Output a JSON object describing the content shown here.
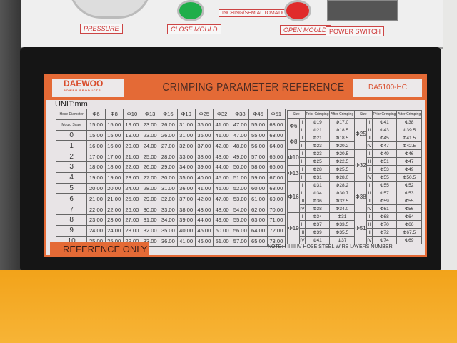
{
  "panel": {
    "labels": [
      "PRESSURE",
      "CLOSE MOULD",
      "INCHING/SEMIAUTOMATIC",
      "OPEN MOULD",
      "POWER SWITCH"
    ]
  },
  "label": {
    "brand": "DAEWOO",
    "brand_sub": "POWER PRODUCTS",
    "title": "CRIMPING PARAMETER REFERENCE",
    "model": "DA5100-HC",
    "unit": "UNIT:mm",
    "reference_only": "REFERENCE ONLY",
    "note": "NOTE:  I  II  III  IV   HOSE STEEL WIRE LAYERS NUMBER"
  },
  "scale_table": {
    "corner_top": "Hose Diameter",
    "corner_bottom": "Scale",
    "corner_mid": "Mould",
    "columns": [
      "Φ6",
      "Φ8",
      "Φ10",
      "Φ13",
      "Φ16",
      "Φ19",
      "Φ25",
      "Φ32",
      "Φ38",
      "Φ45",
      "Φ51"
    ],
    "rows": [
      {
        "scale": "",
        "values": [
          "15.00",
          "15.00",
          "19.00",
          "23.00",
          "26.00",
          "31.00",
          "36.00",
          "41.00",
          "47.00",
          "55.00",
          "63.00"
        ]
      },
      {
        "scale": "0",
        "values": [
          "15.00",
          "15.00",
          "19.00",
          "23.00",
          "26.00",
          "31.00",
          "36.00",
          "41.00",
          "47.00",
          "55.00",
          "63.00"
        ]
      },
      {
        "scale": "1",
        "values": [
          "16.00",
          "16.00",
          "20.00",
          "24.00",
          "27.00",
          "32.00",
          "37.00",
          "42.00",
          "48.00",
          "56.00",
          "64.00"
        ]
      },
      {
        "scale": "2",
        "values": [
          "17.00",
          "17.00",
          "21.00",
          "25.00",
          "28.00",
          "33.00",
          "38.00",
          "43.00",
          "49.00",
          "57.00",
          "65.00"
        ]
      },
      {
        "scale": "3",
        "values": [
          "18.00",
          "18.00",
          "22.00",
          "26.00",
          "29.00",
          "34.00",
          "39.00",
          "44.00",
          "50.00",
          "58.00",
          "66.00"
        ]
      },
      {
        "scale": "4",
        "values": [
          "19.00",
          "19.00",
          "23.00",
          "27.00",
          "30.00",
          "35.00",
          "40.00",
          "45.00",
          "51.00",
          "59.00",
          "67.00"
        ]
      },
      {
        "scale": "5",
        "values": [
          "20.00",
          "20.00",
          "24.00",
          "28.00",
          "31.00",
          "36.00",
          "41.00",
          "46.00",
          "52.00",
          "60.00",
          "68.00"
        ]
      },
      {
        "scale": "6",
        "values": [
          "21.00",
          "21.00",
          "25.00",
          "29.00",
          "32.00",
          "37.00",
          "42.00",
          "47.00",
          "53.00",
          "61.00",
          "69.00"
        ]
      },
      {
        "scale": "7",
        "values": [
          "22.00",
          "22.00",
          "26.00",
          "30.00",
          "33.00",
          "38.00",
          "43.00",
          "48.00",
          "54.00",
          "62.00",
          "70.00"
        ]
      },
      {
        "scale": "8",
        "values": [
          "23.00",
          "23.00",
          "27.00",
          "31.00",
          "34.00",
          "39.00",
          "44.00",
          "49.00",
          "55.00",
          "63.00",
          "71.00"
        ]
      },
      {
        "scale": "9",
        "values": [
          "24.00",
          "24.00",
          "28.00",
          "32.00",
          "35.00",
          "40.00",
          "45.00",
          "50.00",
          "56.00",
          "64.00",
          "72.00"
        ]
      },
      {
        "scale": "10",
        "values": [
          "25.00",
          "25.00",
          "29.00",
          "33.00",
          "36.00",
          "41.00",
          "46.00",
          "51.00",
          "57.00",
          "65.00",
          "73.00"
        ]
      }
    ]
  },
  "crimp_table": {
    "headers": [
      "Size",
      "Prior Crimping",
      "After Crimping"
    ],
    "left": [
      {
        "size": "Φ6",
        "rows": [
          [
            "I",
            "Φ19",
            "Φ17.0"
          ],
          [
            "II",
            "Φ21",
            "Φ18.5"
          ]
        ]
      },
      {
        "size": "Φ8",
        "rows": [
          [
            "I",
            "Φ21",
            "Φ18.5"
          ],
          [
            "II",
            "Φ23",
            "Φ20.2"
          ]
        ]
      },
      {
        "size": "Φ10",
        "rows": [
          [
            "I",
            "Φ23",
            "Φ20.5"
          ],
          [
            "II",
            "Φ25",
            "Φ22.5"
          ]
        ]
      },
      {
        "size": "Φ13",
        "rows": [
          [
            "I",
            "Φ28",
            "Φ25.5"
          ],
          [
            "II",
            "Φ31",
            "Φ28.0"
          ]
        ]
      },
      {
        "size": "Φ16",
        "rows": [
          [
            "I",
            "Φ31",
            "Φ28.2"
          ],
          [
            "II",
            "Φ34",
            "Φ30.7"
          ],
          [
            "III",
            "Φ36",
            "Φ32.5"
          ],
          [
            "IV",
            "Φ38",
            "Φ34.0"
          ]
        ]
      },
      {
        "size": "Φ19",
        "rows": [
          [
            "I",
            "Φ34",
            "Φ31"
          ],
          [
            "II",
            "Φ37",
            "Φ33.5"
          ],
          [
            "III",
            "Φ39",
            "Φ35.5"
          ],
          [
            "IV",
            "Φ41",
            "Φ37"
          ]
        ]
      }
    ],
    "right": [
      {
        "size": "Φ25",
        "rows": [
          [
            "I",
            "Φ41",
            "Φ38"
          ],
          [
            "II",
            "Φ43",
            "Φ39.5"
          ],
          [
            "III",
            "Φ45",
            "Φ41.5"
          ],
          [
            "IV",
            "Φ47",
            "Φ42.5"
          ]
        ]
      },
      {
        "size": "Φ32",
        "rows": [
          [
            "I",
            "Φ49",
            "Φ46"
          ],
          [
            "II",
            "Φ51",
            "Φ47"
          ],
          [
            "III",
            "Φ53",
            "Φ49"
          ],
          [
            "IV",
            "Φ55",
            "Φ50.5"
          ]
        ]
      },
      {
        "size": "Φ38",
        "rows": [
          [
            "I",
            "Φ55",
            "Φ52"
          ],
          [
            "II",
            "Φ57",
            "Φ53"
          ],
          [
            "III",
            "Φ59",
            "Φ55"
          ],
          [
            "IV",
            "Φ61",
            "Φ56"
          ]
        ]
      },
      {
        "size": "Φ51",
        "rows": [
          [
            "I",
            "Φ68",
            "Φ64"
          ],
          [
            "II",
            "Φ70",
            "Φ66"
          ],
          [
            "III",
            "Φ72",
            "Φ67.5"
          ],
          [
            "IV",
            "Φ74",
            "Φ69"
          ]
        ]
      }
    ]
  },
  "colors": {
    "accent": "#e46a36",
    "housing": "#151515",
    "floor": "#f5ac25"
  }
}
